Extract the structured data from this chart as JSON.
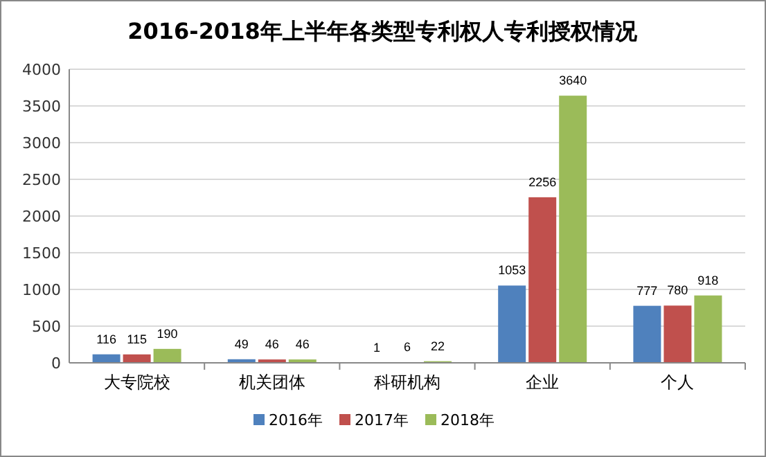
{
  "chart_data": {
    "type": "bar",
    "title": "2016-2018年上半年各类型专利权人专利授权情况",
    "categories": [
      "大专院校",
      "机关团体",
      "科研机构",
      "企业",
      "个人"
    ],
    "series": [
      {
        "name": "2016年",
        "color": "#4f81bd",
        "values": [
          116,
          49,
          1,
          1053,
          777
        ]
      },
      {
        "name": "2017年",
        "color": "#c0504d",
        "values": [
          115,
          46,
          6,
          2256,
          780
        ]
      },
      {
        "name": "2018年",
        "color": "#9bbb59",
        "values": [
          190,
          46,
          22,
          3640,
          918
        ]
      }
    ],
    "ylim": [
      0,
      4000
    ],
    "yticks": [
      0,
      500,
      1000,
      1500,
      2000,
      2500,
      3000,
      3500,
      4000
    ],
    "grid": "y",
    "legend": "bottom",
    "data_labels": true
  }
}
